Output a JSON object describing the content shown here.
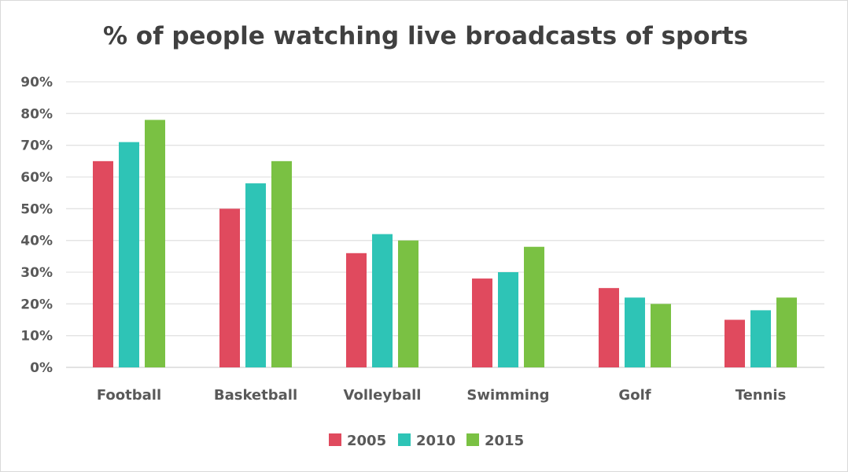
{
  "chart_data": {
    "type": "bar",
    "title": "% of people watching live broadcasts of sports",
    "categories": [
      "Football",
      "Basketball",
      "Volleyball",
      "Swimming",
      "Golf",
      "Tennis"
    ],
    "series": [
      {
        "name": "2005",
        "color": "#e04a5e",
        "values": [
          65,
          50,
          36,
          28,
          25,
          15
        ]
      },
      {
        "name": "2010",
        "color": "#2ec4b6",
        "values": [
          71,
          58,
          42,
          30,
          22,
          18
        ]
      },
      {
        "name": "2015",
        "color": "#7ac143",
        "values": [
          78,
          65,
          40,
          38,
          20,
          22
        ]
      }
    ],
    "yticks": [
      "0%",
      "10%",
      "20%",
      "30%",
      "40%",
      "50%",
      "60%",
      "70%",
      "80%",
      "90%"
    ],
    "ylim": [
      0,
      90
    ],
    "grid": true,
    "legend": "bottom"
  }
}
